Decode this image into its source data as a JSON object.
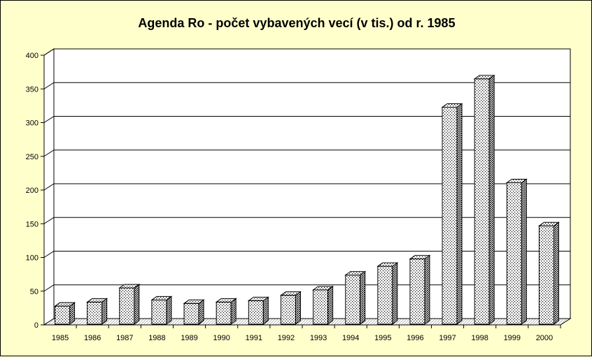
{
  "chart_data": {
    "type": "bar",
    "title": "Agenda Ro - počet vybavených vecí (v tis.) od r. 1985",
    "categories": [
      "1985",
      "1986",
      "1987",
      "1988",
      "1989",
      "1990",
      "1991",
      "1992",
      "1993",
      "1994",
      "1995",
      "1996",
      "1997",
      "1998",
      "1999",
      "2000"
    ],
    "values": [
      32,
      38,
      59,
      41,
      36,
      38,
      40,
      48,
      56,
      78,
      91,
      102,
      327,
      369,
      215,
      151
    ],
    "ylim": [
      0,
      400
    ],
    "yticks": [
      0,
      50,
      100,
      150,
      200,
      250,
      300,
      350,
      400
    ],
    "xlabel": "",
    "ylabel": "",
    "grid": true,
    "legend": "none",
    "style": "3d-dotted-columns",
    "colors": {
      "background": "#ffffcc",
      "plot_background": "#ffffff",
      "bar_fill": "#ffffff",
      "bar_dots": "#000000",
      "gridline": "#000000"
    }
  }
}
